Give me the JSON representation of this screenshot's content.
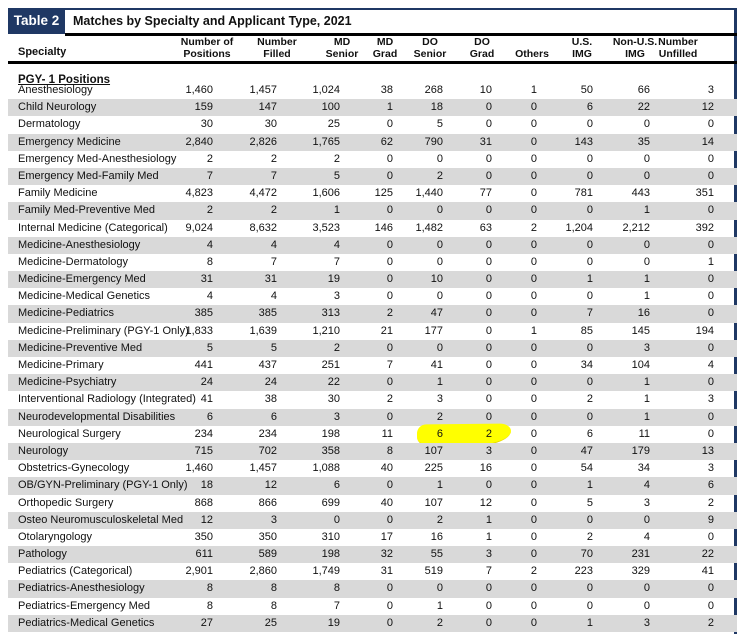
{
  "header": {
    "table_label": "Table 2",
    "title": "Matches by Specialty and Applicant Type, 2021"
  },
  "section_heading": "PGY- 1 Positions",
  "columns": [
    {
      "id": "specialty",
      "label": "Specialty"
    },
    {
      "id": "positions",
      "line1": "Number of",
      "line2": "Positions"
    },
    {
      "id": "filled",
      "line1": "Number",
      "line2": "Filled"
    },
    {
      "id": "md-senior",
      "line1": "MD",
      "line2": "Senior"
    },
    {
      "id": "md-grad",
      "line1": "MD",
      "line2": "Grad"
    },
    {
      "id": "do-senior",
      "line1": "DO",
      "line2": "Senior"
    },
    {
      "id": "do-grad",
      "line1": "DO",
      "line2": "Grad"
    },
    {
      "id": "others",
      "line1": "",
      "line2": "Others"
    },
    {
      "id": "us-img",
      "line1": "U.S.",
      "line2": "IMG"
    },
    {
      "id": "non-us-img",
      "line1": "Non-U.S.",
      "line2": "IMG"
    },
    {
      "id": "unfilled",
      "line1": "Number",
      "line2": "Unfilled"
    }
  ],
  "rows": [
    [
      "Anesthesiology",
      "1,460",
      "1,457",
      "1,024",
      "38",
      "268",
      "10",
      "1",
      "50",
      "66",
      "3"
    ],
    [
      "Child Neurology",
      "159",
      "147",
      "100",
      "1",
      "18",
      "0",
      "0",
      "6",
      "22",
      "12"
    ],
    [
      "Dermatology",
      "30",
      "30",
      "25",
      "0",
      "5",
      "0",
      "0",
      "0",
      "0",
      "0"
    ],
    [
      "Emergency Medicine",
      "2,840",
      "2,826",
      "1,765",
      "62",
      "790",
      "31",
      "0",
      "143",
      "35",
      "14"
    ],
    [
      "Emergency Med-Anesthesiology",
      "2",
      "2",
      "2",
      "0",
      "0",
      "0",
      "0",
      "0",
      "0",
      "0"
    ],
    [
      "Emergency Med-Family Med",
      "7",
      "7",
      "5",
      "0",
      "2",
      "0",
      "0",
      "0",
      "0",
      "0"
    ],
    [
      "Family Medicine",
      "4,823",
      "4,472",
      "1,606",
      "125",
      "1,440",
      "77",
      "0",
      "781",
      "443",
      "351"
    ],
    [
      "Family Med-Preventive Med",
      "2",
      "2",
      "1",
      "0",
      "0",
      "0",
      "0",
      "0",
      "1",
      "0"
    ],
    [
      "Internal Medicine (Categorical)",
      "9,024",
      "8,632",
      "3,523",
      "146",
      "1,482",
      "63",
      "2",
      "1,204",
      "2,212",
      "392"
    ],
    [
      "Medicine-Anesthesiology",
      "4",
      "4",
      "4",
      "0",
      "0",
      "0",
      "0",
      "0",
      "0",
      "0"
    ],
    [
      "Medicine-Dermatology",
      "8",
      "7",
      "7",
      "0",
      "0",
      "0",
      "0",
      "0",
      "0",
      "1"
    ],
    [
      "Medicine-Emergency Med",
      "31",
      "31",
      "19",
      "0",
      "10",
      "0",
      "0",
      "1",
      "1",
      "0"
    ],
    [
      "Medicine-Medical Genetics",
      "4",
      "4",
      "3",
      "0",
      "0",
      "0",
      "0",
      "0",
      "1",
      "0"
    ],
    [
      "Medicine-Pediatrics",
      "385",
      "385",
      "313",
      "2",
      "47",
      "0",
      "0",
      "7",
      "16",
      "0"
    ],
    [
      "Medicine-Preliminary (PGY-1 Only)",
      "1,833",
      "1,639",
      "1,210",
      "21",
      "177",
      "0",
      "1",
      "85",
      "145",
      "194"
    ],
    [
      "Medicine-Preventive Med",
      "5",
      "5",
      "2",
      "0",
      "0",
      "0",
      "0",
      "0",
      "3",
      "0"
    ],
    [
      "Medicine-Primary",
      "441",
      "437",
      "251",
      "7",
      "41",
      "0",
      "0",
      "34",
      "104",
      "4"
    ],
    [
      "Medicine-Psychiatry",
      "24",
      "24",
      "22",
      "0",
      "1",
      "0",
      "0",
      "0",
      "1",
      "0"
    ],
    [
      "Interventional Radiology (Integrated)",
      "41",
      "38",
      "30",
      "2",
      "3",
      "0",
      "0",
      "2",
      "1",
      "3"
    ],
    [
      "Neurodevelopmental Disabilities",
      "6",
      "6",
      "3",
      "0",
      "2",
      "0",
      "0",
      "0",
      "1",
      "0"
    ],
    [
      "Neurological Surgery",
      "234",
      "234",
      "198",
      "11",
      "6",
      "2",
      "0",
      "6",
      "11",
      "0"
    ],
    [
      "Neurology",
      "715",
      "702",
      "358",
      "8",
      "107",
      "3",
      "0",
      "47",
      "179",
      "13"
    ],
    [
      "Obstetrics-Gynecology",
      "1,460",
      "1,457",
      "1,088",
      "40",
      "225",
      "16",
      "0",
      "54",
      "34",
      "3"
    ],
    [
      "OB/GYN-Preliminary (PGY-1 Only)",
      "18",
      "12",
      "6",
      "0",
      "1",
      "0",
      "0",
      "1",
      "4",
      "6"
    ],
    [
      "Orthopedic Surgery",
      "868",
      "866",
      "699",
      "40",
      "107",
      "12",
      "0",
      "5",
      "3",
      "2"
    ],
    [
      "Osteo Neuromusculoskeletal Med",
      "12",
      "3",
      "0",
      "0",
      "2",
      "1",
      "0",
      "0",
      "0",
      "9"
    ],
    [
      "Otolaryngology",
      "350",
      "350",
      "310",
      "17",
      "16",
      "1",
      "0",
      "2",
      "4",
      "0"
    ],
    [
      "Pathology",
      "611",
      "589",
      "198",
      "32",
      "55",
      "3",
      "0",
      "70",
      "231",
      "22"
    ],
    [
      "Pediatrics (Categorical)",
      "2,901",
      "2,860",
      "1,749",
      "31",
      "519",
      "7",
      "2",
      "223",
      "329",
      "41"
    ],
    [
      "Pediatrics-Anesthesiology",
      "8",
      "8",
      "8",
      "0",
      "0",
      "0",
      "0",
      "0",
      "0",
      "0"
    ],
    [
      "Pediatrics-Emergency Med",
      "8",
      "8",
      "7",
      "0",
      "1",
      "0",
      "0",
      "0",
      "0",
      "0"
    ],
    [
      "Pediatrics-Medical Genetics",
      "27",
      "25",
      "19",
      "0",
      "2",
      "0",
      "0",
      "1",
      "3",
      "2"
    ]
  ],
  "highlight": {
    "specialty": "Neurological Surgery",
    "highlighted_columns": [
      "DO Senior",
      "DO Grad"
    ],
    "highlighted_values": [
      "6",
      "2"
    ],
    "color": "#ffff00"
  },
  "colors": {
    "navy": "#1f3864",
    "stripe": "#d9d9d9",
    "highlight": "#ffff00"
  }
}
